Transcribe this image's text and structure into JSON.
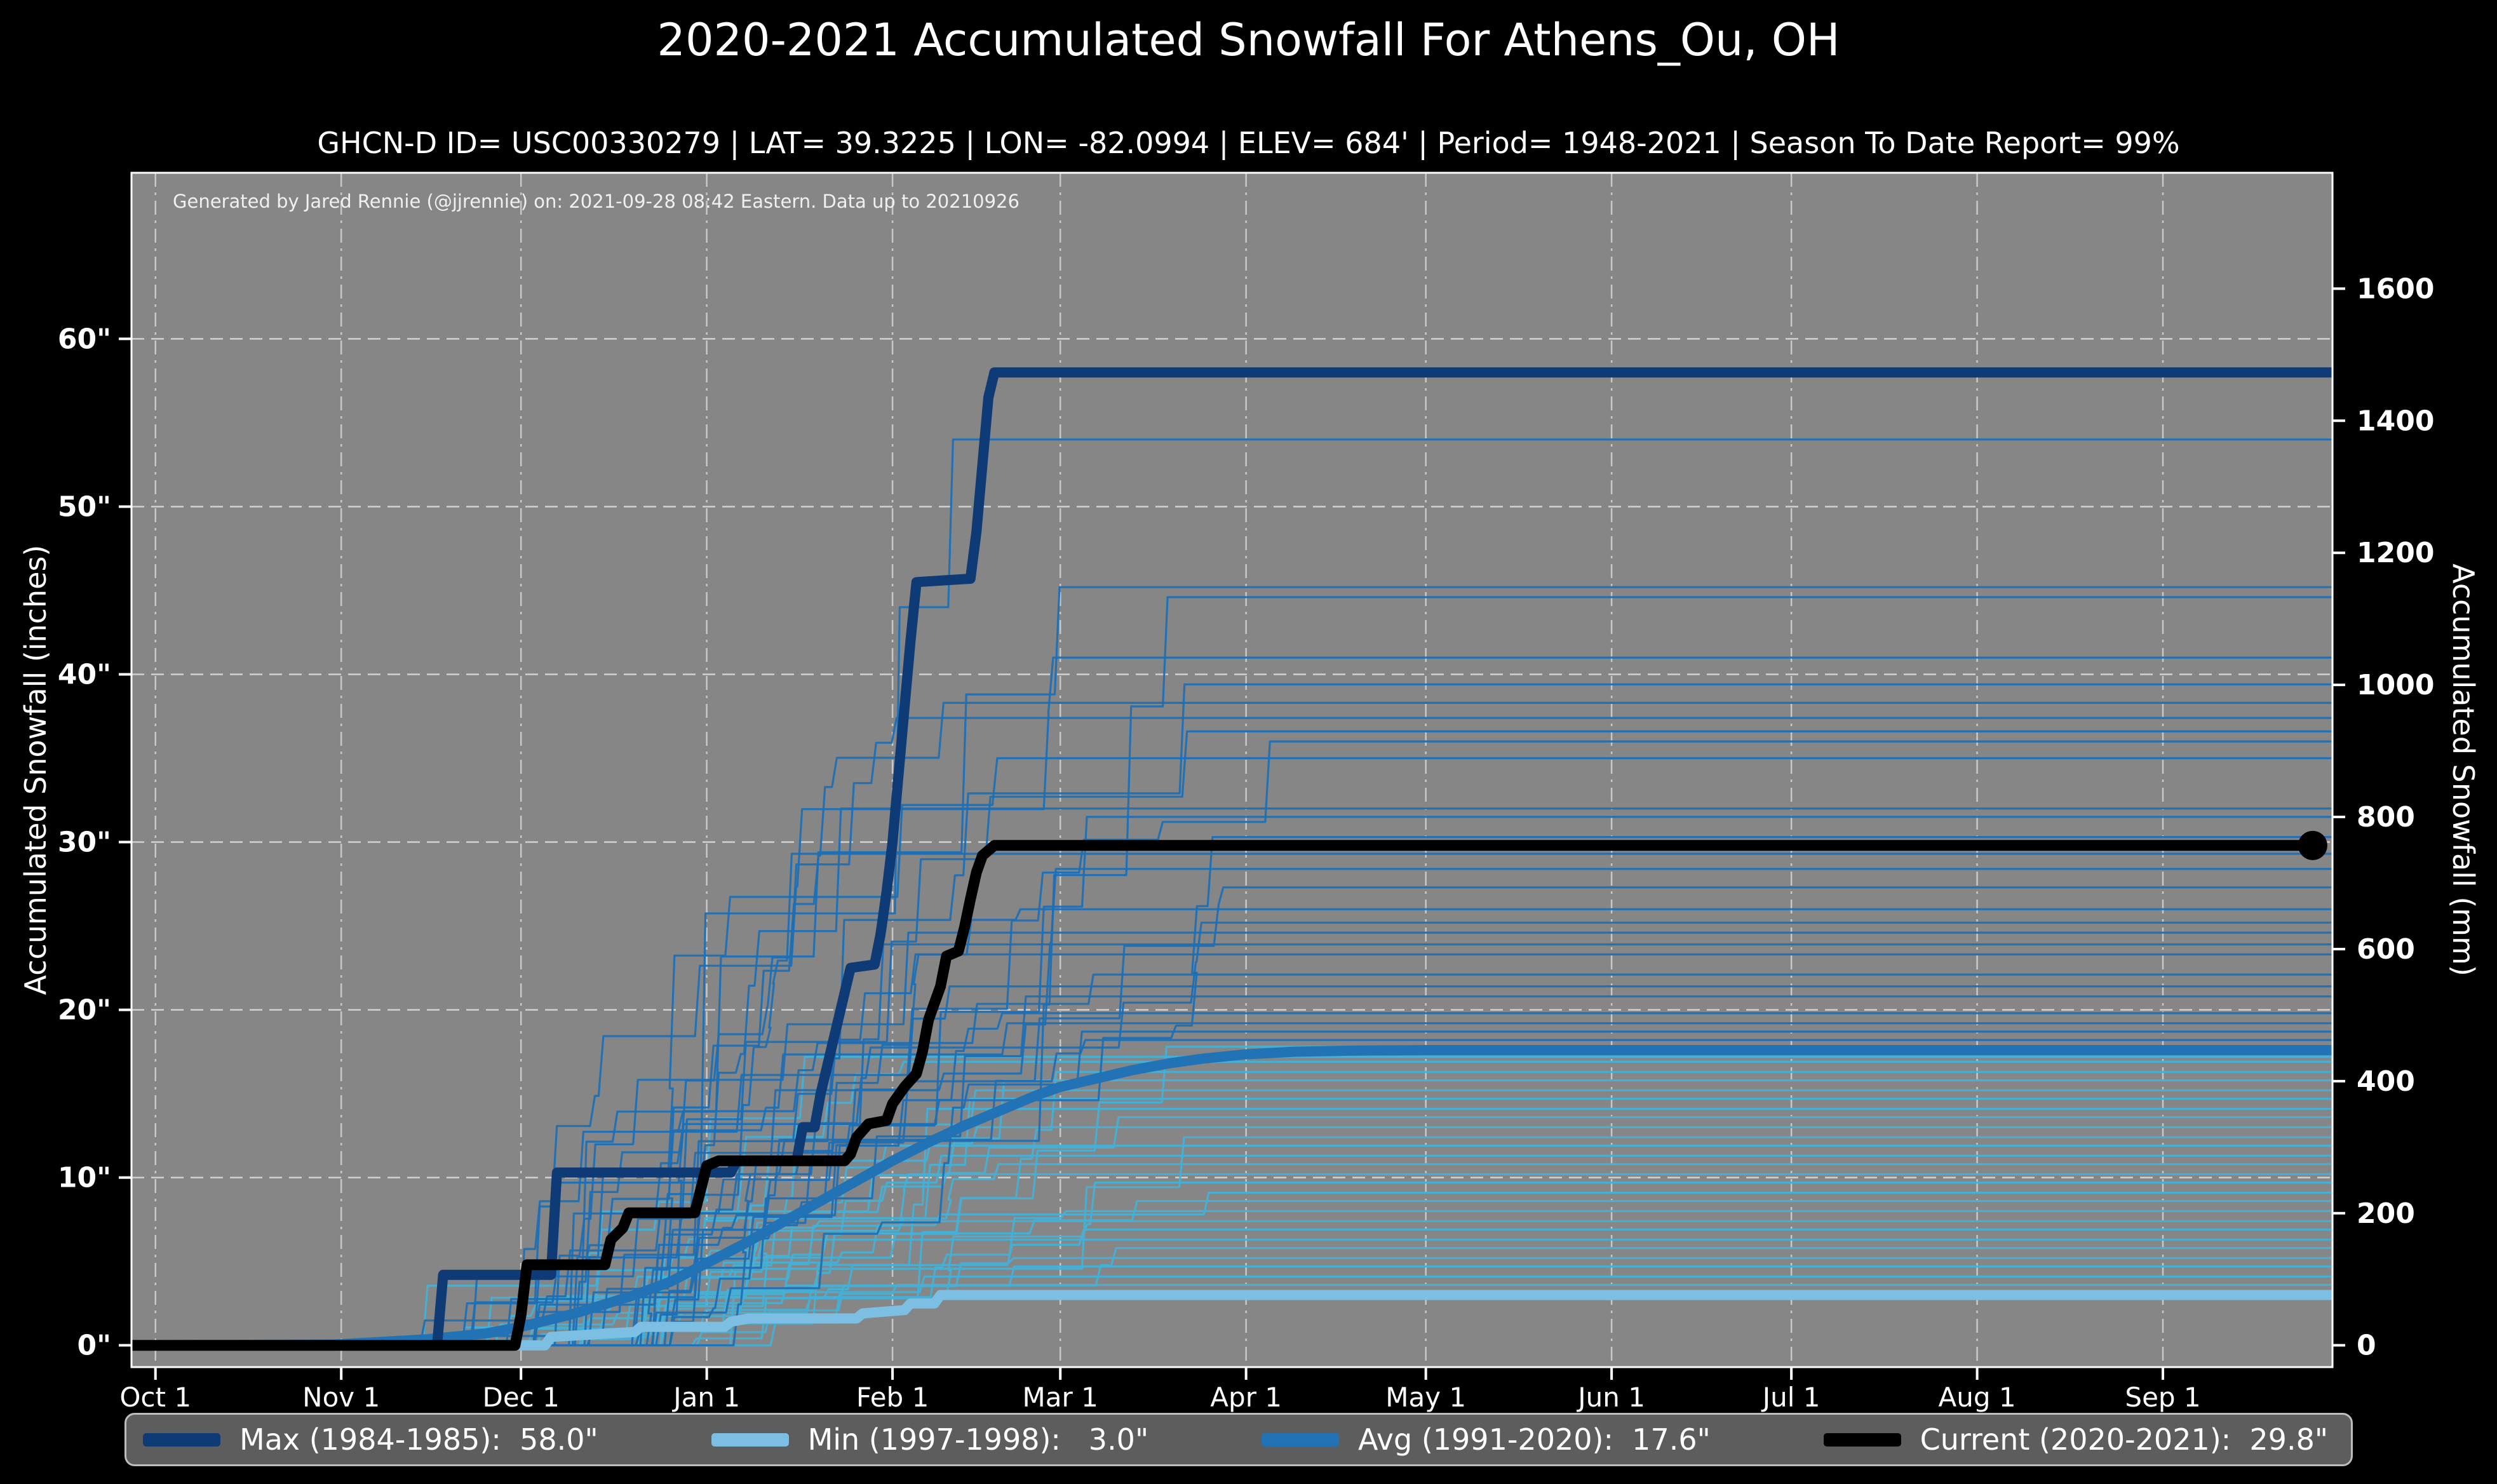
{
  "page": {
    "background": "#000000",
    "text_color": "#ffffff"
  },
  "header": {
    "title": "2020-2021 Accumulated Snowfall For Athens_Ou, OH",
    "subtitle": "GHCN-D ID= USC00330279 | LAT= 39.3225 | LON= -82.0994 | ELEV= 684' | Period= 1948-2021 | Season To Date Report= 99%"
  },
  "credit": "Generated by Jared Rennie (@jjrennie) on: 2021-09-28 08:42 Eastern. Data up to 20210926",
  "axes": {
    "x": {
      "tick_labels": [
        "Oct 1",
        "Nov 1",
        "Dec 1",
        "Jan 1",
        "Feb 1",
        "Mar 1",
        "Apr 1",
        "May 1",
        "Jun 1",
        "Jul 1",
        "Aug 1",
        "Sep 1"
      ],
      "tick_days": [
        0,
        31,
        61,
        92,
        123,
        151,
        182,
        212,
        243,
        273,
        304,
        335
      ],
      "domain_days": [
        -4,
        363.3
      ]
    },
    "left": {
      "label": "Accumulated Snowfall (inches)",
      "tick_values": [
        0,
        10,
        20,
        30,
        40,
        50,
        60
      ],
      "tick_suffix": "\"",
      "range_inches": [
        -1.3,
        69.9
      ]
    },
    "right": {
      "label": "Accumulated Snowfall (mm)",
      "tick_values": [
        0,
        200,
        400,
        600,
        800,
        1000,
        1200,
        1400,
        1600
      ],
      "mm_per_inch": 25.4
    }
  },
  "legend": {
    "items": [
      {
        "label": "Max (1984-1985):  58.0\"",
        "color": "#0e3a76"
      },
      {
        "label": "Min (1997-1998):   3.0\"",
        "color": "#7cbfe3"
      },
      {
        "label": "Avg (1991-2020):  17.6\"",
        "color": "#2273b6"
      },
      {
        "label": "Current (2020-2021):  29.8\"",
        "color": "#000000"
      }
    ]
  },
  "chart_data": {
    "type": "line",
    "title": "2020-2021 Accumulated Snowfall For Athens_Ou, OH",
    "x_unit": "days since Oct 1",
    "y_unit": "inches",
    "plot_bg": "#868686",
    "grid_h_color": "#d9d9d9",
    "grid_v_color": "#cfcfcf",
    "spine_color": "#ffffff",
    "series": [
      {
        "name": "Max (1984-1985)",
        "final_total_in": 58.0,
        "color": "#0e3a76",
        "width": 16,
        "points": [
          [
            -4,
            0
          ],
          [
            47,
            0
          ],
          [
            48,
            4.2
          ],
          [
            66,
            4.2
          ],
          [
            67,
            10.3
          ],
          [
            96,
            10.3
          ],
          [
            97,
            11
          ],
          [
            107,
            11
          ],
          [
            108,
            13
          ],
          [
            110,
            13
          ],
          [
            111,
            15
          ],
          [
            112,
            16.5
          ],
          [
            113,
            18
          ],
          [
            114,
            19.5
          ],
          [
            115,
            21
          ],
          [
            116,
            22.5
          ],
          [
            120,
            22.7
          ],
          [
            121,
            24.5
          ],
          [
            122,
            27
          ],
          [
            123,
            30
          ],
          [
            124,
            34
          ],
          [
            125,
            38
          ],
          [
            126,
            42
          ],
          [
            127,
            45.5
          ],
          [
            136,
            45.7
          ],
          [
            137,
            48.5
          ],
          [
            138,
            52.5
          ],
          [
            139,
            56.5
          ],
          [
            140,
            58
          ],
          [
            363,
            58
          ]
        ]
      },
      {
        "name": "Min (1997-1998)",
        "final_total_in": 3.0,
        "color": "#7cbfe3",
        "width": 16,
        "points": [
          [
            -4,
            0
          ],
          [
            65,
            0
          ],
          [
            66,
            0.5
          ],
          [
            80,
            0.8
          ],
          [
            81,
            1.1
          ],
          [
            95,
            1.1
          ],
          [
            96,
            1.4
          ],
          [
            99,
            1.6
          ],
          [
            117,
            1.6
          ],
          [
            118,
            1.9
          ],
          [
            125,
            2.1
          ],
          [
            126,
            2.5
          ],
          [
            130,
            2.5
          ],
          [
            131,
            3
          ],
          [
            363,
            3
          ]
        ]
      },
      {
        "name": "Avg (1991-2020)",
        "final_total_in": 17.6,
        "color": "#2273b6",
        "width": 16,
        "points": [
          [
            -4,
            0
          ],
          [
            30,
            0.05
          ],
          [
            45,
            0.35
          ],
          [
            55,
            0.7
          ],
          [
            61,
            1.1
          ],
          [
            70,
            1.9
          ],
          [
            80,
            3
          ],
          [
            86,
            3.8
          ],
          [
            92,
            4.9
          ],
          [
            98,
            6
          ],
          [
            104,
            7.2
          ],
          [
            110,
            8.4
          ],
          [
            116,
            9.6
          ],
          [
            123,
            11
          ],
          [
            129,
            12.1
          ],
          [
            135,
            13.1
          ],
          [
            141,
            14
          ],
          [
            147,
            14.9
          ],
          [
            151,
            15.4
          ],
          [
            157,
            15.9
          ],
          [
            163,
            16.4
          ],
          [
            169,
            16.8
          ],
          [
            175,
            17.1
          ],
          [
            182,
            17.35
          ],
          [
            190,
            17.5
          ],
          [
            200,
            17.57
          ],
          [
            212,
            17.6
          ],
          [
            363,
            17.6
          ]
        ]
      },
      {
        "name": "Current (2020-2021)",
        "final_total_in": 29.8,
        "color": "#000000",
        "width": 17,
        "points": [
          [
            -4,
            0
          ],
          [
            60,
            0
          ],
          [
            61,
            1.8
          ],
          [
            62,
            4.8
          ],
          [
            75,
            4.8
          ],
          [
            76,
            6.3
          ],
          [
            78,
            7
          ],
          [
            79,
            7.9
          ],
          [
            90,
            7.9
          ],
          [
            91,
            9.3
          ],
          [
            92,
            10.7
          ],
          [
            94,
            11
          ],
          [
            115,
            11
          ],
          [
            116,
            11.4
          ],
          [
            117,
            12.4
          ],
          [
            119,
            13.2
          ],
          [
            122,
            13.4
          ],
          [
            123,
            14.4
          ],
          [
            125,
            15.4
          ],
          [
            127,
            16.2
          ],
          [
            128,
            17.5
          ],
          [
            129,
            19.4
          ],
          [
            130,
            20.4
          ],
          [
            131,
            21.4
          ],
          [
            132,
            23.2
          ],
          [
            134,
            23.5
          ],
          [
            135,
            24.9
          ],
          [
            136,
            26.6
          ],
          [
            137,
            28.2
          ],
          [
            138,
            29.2
          ],
          [
            140,
            29.8
          ],
          [
            360,
            29.8
          ]
        ],
        "end_marker": {
          "day": 360,
          "value": 29.8,
          "radius": 23
        }
      }
    ],
    "background_seasons": {
      "description": "Individual seasons 1948-2021, approximate final season totals in inches",
      "dark_color": "#1d6fb5",
      "light_color": "#45b0d6",
      "width": 3.2,
      "dark_totals": [
        54,
        45.2,
        44.6,
        41,
        39.4,
        38.3,
        37.4,
        36.6,
        36,
        35,
        32,
        31.5,
        30.3,
        29.3,
        28.4,
        27.3,
        26,
        25.2,
        24.6,
        23.9,
        23.3,
        22.1,
        21.4,
        20.8,
        19.8,
        19.2,
        18.7,
        18.2
      ],
      "light_totals": [
        17.8,
        17.2,
        16.9,
        16.3,
        15.8,
        15.2,
        14.7,
        14.1,
        13.6,
        13,
        12.4,
        11.9,
        11.3,
        10.8,
        10.2,
        9.7,
        9.1,
        8.6,
        8,
        7.4,
        6.9,
        6.3,
        5.8,
        5.2,
        4.7,
        4.1,
        3.6
      ]
    }
  }
}
